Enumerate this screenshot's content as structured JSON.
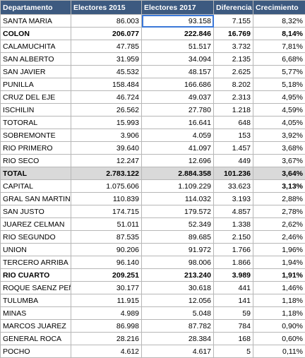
{
  "table": {
    "header": [
      "Departamento",
      "Electores 2015",
      "Electores 2017",
      "Diferencia",
      "Crecimiento"
    ],
    "rows": [
      [
        "SANTA MARIA",
        "86.003",
        "93.158",
        "7.155",
        "8,32%"
      ],
      [
        "COLON",
        "206.077",
        "222.846",
        "16.769",
        "8,14%"
      ],
      [
        "CALAMUCHITA",
        "47.785",
        "51.517",
        "3.732",
        "7,81%"
      ],
      [
        "SAN ALBERTO",
        "31.959",
        "34.094",
        "2.135",
        "6,68%"
      ],
      [
        "SAN JAVIER",
        "45.532",
        "48.157",
        "2.625",
        "5,77%"
      ],
      [
        "PUNILLA",
        "158.484",
        "166.686",
        "8.202",
        "5,18%"
      ],
      [
        "CRUZ DEL EJE",
        "46.724",
        "49.037",
        "2.313",
        "4,95%"
      ],
      [
        "ISCHILIN",
        "26.562",
        "27.780",
        "1.218",
        "4,59%"
      ],
      [
        "TOTORAL",
        "15.993",
        "16.641",
        "648",
        "4,05%"
      ],
      [
        "SOBREMONTE",
        "3.906",
        "4.059",
        "153",
        "3,92%"
      ],
      [
        "RIO PRIMERO",
        "39.640",
        "41.097",
        "1.457",
        "3,68%"
      ],
      [
        "RIO SECO",
        "12.247",
        "12.696",
        "449",
        "3,67%"
      ],
      [
        "TOTAL",
        "2.783.122",
        "2.884.358",
        "101.236",
        "3,64%"
      ],
      [
        "CAPITAL",
        "1.075.606",
        "1.109.229",
        "33.623",
        "3,13%"
      ],
      [
        "GRAL SAN MARTIN",
        "110.839",
        "114.032",
        "3.193",
        "2,88%"
      ],
      [
        "SAN JUSTO",
        "174.715",
        "179.572",
        "4.857",
        "2,78%"
      ],
      [
        "JUAREZ CELMAN",
        "51.011",
        "52.349",
        "1.338",
        "2,62%"
      ],
      [
        "RIO SEGUNDO",
        "87.535",
        "89.685",
        "2.150",
        "2,46%"
      ],
      [
        "UNION",
        "90.206",
        "91.972",
        "1.766",
        "1,96%"
      ],
      [
        "TERCERO ARRIBA",
        "96.140",
        "98.006",
        "1.866",
        "1,94%"
      ],
      [
        "RIO CUARTO",
        "209.251",
        "213.240",
        "3.989",
        "1,91%"
      ],
      [
        "ROQUE SAENZ PEÑ",
        "30.177",
        "30.618",
        "441",
        "1,46%"
      ],
      [
        "TULUMBA",
        "11.915",
        "12.056",
        "141",
        "1,18%"
      ],
      [
        "MINAS",
        "4.989",
        "5.048",
        "59",
        "1,18%"
      ],
      [
        "MARCOS JUAREZ",
        "86.998",
        "87.782",
        "784",
        "0,90%"
      ],
      [
        "GENERAL ROCA",
        "28.216",
        "28.384",
        "168",
        "0,60%"
      ],
      [
        "POCHO",
        "4.612",
        "4.617",
        "5",
        "0,11%"
      ]
    ]
  }
}
